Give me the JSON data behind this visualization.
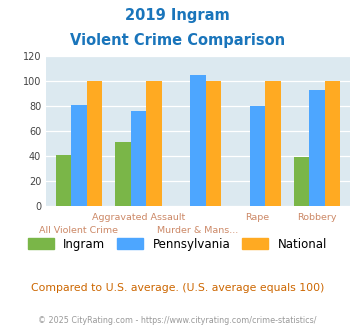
{
  "title_line1": "2019 Ingram",
  "title_line2": "Violent Crime Comparison",
  "ingram": [
    41,
    51,
    0,
    0,
    39
  ],
  "pennsylvania": [
    81,
    76,
    105,
    80,
    93
  ],
  "national": [
    100,
    100,
    100,
    100,
    100
  ],
  "color_ingram": "#7ab648",
  "color_pa": "#4da6ff",
  "color_national": "#ffaa22",
  "bg_color": "#dce9f0",
  "title_color": "#1a75bb",
  "xlabel_color": "#cc8866",
  "note_color": "#cc6600",
  "footer_color": "#999999",
  "ylim": [
    0,
    120
  ],
  "yticks": [
    0,
    20,
    40,
    60,
    80,
    100,
    120
  ],
  "xlabels_row1": [
    "",
    "Aggravated Assault",
    "",
    "Rape",
    "Robbery"
  ],
  "xlabels_row2": [
    "All Violent Crime",
    "",
    "Murder & Mans...",
    "",
    ""
  ],
  "note_text": "Compared to U.S. average. (U.S. average equals 100)",
  "footer_text": "© 2025 CityRating.com - https://www.cityrating.com/crime-statistics/"
}
